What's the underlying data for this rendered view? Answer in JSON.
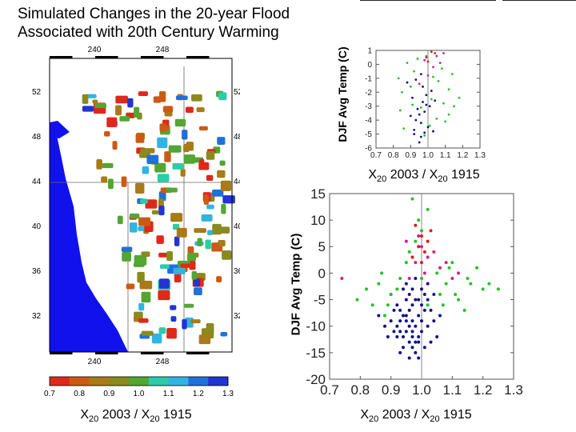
{
  "title": "Simulated Changes in the 20-year Flood\nAssociated with 20th Century Warming",
  "colors": {
    "dark_blue": "#10108a",
    "green": "#22c422",
    "magenta": "#d21e8c",
    "red": "#e01818"
  },
  "map": {
    "lon_ticks": [
      "240",
      "248"
    ],
    "lat_ticks": [
      "52",
      "48",
      "44",
      "40",
      "36",
      "32"
    ],
    "lat_ticks_right": [
      "52",
      "48",
      "44",
      "40",
      "36",
      "32"
    ],
    "colorbar": {
      "ticks": [
        "0.7",
        "0.8",
        "0.9",
        "1.0",
        "1.1",
        "1.2",
        "1.3"
      ],
      "colors": [
        "#e0281a",
        "#cc5a14",
        "#a87a18",
        "#8a8a1e",
        "#52a632",
        "#2ccca8",
        "#30b4e4",
        "#2070dc",
        "#2234d2"
      ],
      "xlabel": "X20 2003 / X20 1915"
    }
  },
  "chart_data": [
    {
      "type": "scatter",
      "title": "",
      "xlabel": "X20 2003 / X20 1915",
      "ylabel": "DJF Avg Temp (C)",
      "xlim": [
        0.7,
        1.3
      ],
      "ylim": [
        -6,
        1
      ],
      "xticks": [
        "0.7",
        "0.8",
        "0.9",
        "1.0",
        "1.1",
        "1.2",
        "1.3"
      ],
      "yticks": [
        "1",
        "0",
        "-1",
        "-2",
        "-3",
        "-4",
        "-5",
        "-6"
      ],
      "vline": 1.0,
      "series": [
        {
          "color": "#10108a",
          "points": [
            [
              0.93,
              -1.1
            ],
            [
              0.96,
              -0.7
            ],
            [
              0.97,
              -2.7
            ],
            [
              0.99,
              -2.9
            ],
            [
              0.95,
              -3.6
            ],
            [
              0.92,
              -4.7
            ],
            [
              0.98,
              -3.4
            ],
            [
              1.02,
              -1.9
            ],
            [
              0.94,
              -3.2
            ],
            [
              0.96,
              -4.2
            ],
            [
              1.0,
              -4.5
            ],
            [
              0.91,
              -2.4
            ],
            [
              0.88,
              -1.3
            ],
            [
              1.03,
              -4.8
            ],
            [
              0.97,
              -1.6
            ],
            [
              0.95,
              -5.6
            ],
            [
              0.93,
              -4.0
            ],
            [
              1.01,
              -3.0
            ],
            [
              0.99,
              -2.2
            ],
            [
              0.9,
              -3.7
            ],
            [
              0.96,
              -5.2
            ],
            [
              1.04,
              -2.6
            ],
            [
              0.92,
              -5.0
            ],
            [
              0.98,
              -4.9
            ]
          ]
        },
        {
          "color": "#22c422",
          "points": [
            [
              0.88,
              0.1
            ],
            [
              0.92,
              -0.5
            ],
            [
              1.08,
              -0.3
            ],
            [
              1.12,
              -1.8
            ],
            [
              1.02,
              -2.5
            ],
            [
              0.85,
              -2.0
            ],
            [
              1.15,
              -3.0
            ],
            [
              0.94,
              0.4
            ],
            [
              1.06,
              -1.2
            ],
            [
              0.84,
              -3.3
            ],
            [
              1.1,
              -4.1
            ],
            [
              0.9,
              -1.6
            ],
            [
              1.03,
              -0.9
            ],
            [
              1.18,
              -2.4
            ],
            [
              0.96,
              -3.1
            ],
            [
              1.05,
              -3.9
            ],
            [
              0.86,
              -4.6
            ],
            [
              1.14,
              -0.7
            ],
            [
              0.99,
              0.6
            ],
            [
              1.09,
              -2.8
            ],
            [
              0.83,
              -1.0
            ],
            [
              1.01,
              -4.4
            ],
            [
              0.98,
              -5.1
            ],
            [
              1.12,
              -3.6
            ],
            [
              0.91,
              -2.9
            ]
          ]
        },
        {
          "color": "#d21e8c",
          "points": [
            [
              1.05,
              0.6
            ],
            [
              1.0,
              -0.8
            ],
            [
              0.98,
              0.3
            ],
            [
              1.07,
              0.1
            ],
            [
              0.95,
              -1.4
            ],
            [
              1.03,
              -0.2
            ],
            [
              1.09,
              0.8
            ]
          ]
        },
        {
          "color": "#e01818",
          "points": [
            [
              1.02,
              0.9
            ],
            [
              0.99,
              0.5
            ],
            [
              1.04,
              0.8
            ],
            [
              1.0,
              0.2
            ]
          ]
        }
      ]
    },
    {
      "type": "scatter",
      "title": "",
      "xlabel": "X20 2003 / X20 1915",
      "ylabel": "DJF Avg Temp (C)",
      "xlim": [
        0.7,
        1.3
      ],
      "ylim": [
        -20,
        15
      ],
      "xticks": [
        "0.7",
        "0.8",
        "0.9",
        "1.0",
        "1.1",
        "1.2",
        "1.3"
      ],
      "yticks": [
        "15",
        "10",
        "5",
        "0",
        "-5",
        "-10",
        "-15",
        "-20"
      ],
      "vline": 1.0,
      "series": [
        {
          "color": "#10108a",
          "points": [
            [
              0.93,
              -7
            ],
            [
              0.95,
              -9
            ],
            [
              0.97,
              -11
            ],
            [
              0.98,
              -5
            ],
            [
              1.0,
              -3
            ],
            [
              0.96,
              -13
            ],
            [
              0.94,
              -14
            ],
            [
              0.99,
              -8
            ],
            [
              1.02,
              -10
            ],
            [
              1.01,
              -4
            ],
            [
              0.92,
              -12
            ],
            [
              0.97,
              -6
            ],
            [
              0.95,
              -2
            ],
            [
              1.03,
              -7
            ],
            [
              0.98,
              -15
            ],
            [
              0.9,
              -9
            ],
            [
              0.96,
              -10
            ],
            [
              0.99,
              -12
            ],
            [
              1.0,
              -6
            ],
            [
              0.94,
              -8
            ],
            [
              0.97,
              -3
            ],
            [
              1.01,
              -14
            ],
            [
              0.93,
              -11
            ],
            [
              0.95,
              -5
            ],
            [
              0.98,
              -1
            ],
            [
              1.04,
              -9
            ],
            [
              0.91,
              -7
            ],
            [
              0.96,
              -4
            ],
            [
              0.99,
              -13
            ],
            [
              1.02,
              -2
            ],
            [
              0.88,
              -10
            ],
            [
              0.94,
              -12
            ],
            [
              0.97,
              -9
            ],
            [
              1.0,
              -11
            ],
            [
              0.92,
              -6
            ],
            [
              1.05,
              -12
            ],
            [
              0.96,
              -16
            ],
            [
              0.98,
              -10
            ],
            [
              0.86,
              -8
            ],
            [
              1.01,
              -7
            ],
            [
              0.93,
              -15
            ],
            [
              0.99,
              -5
            ],
            [
              0.95,
              -11
            ],
            [
              1.03,
              -13
            ],
            [
              0.9,
              -4
            ],
            [
              0.97,
              -14
            ],
            [
              0.94,
              -3
            ],
            [
              1.0,
              -9
            ],
            [
              0.89,
              -12
            ],
            [
              0.96,
              -7
            ],
            [
              1.06,
              -8
            ],
            [
              0.92,
              -10
            ],
            [
              0.98,
              -13
            ],
            [
              1.02,
              -5
            ],
            [
              0.95,
              -8
            ],
            [
              0.99,
              -16
            ],
            [
              0.91,
              -11
            ],
            [
              1.04,
              -4
            ],
            [
              0.97,
              -12
            ],
            [
              0.93,
              -9
            ]
          ]
        },
        {
          "color": "#22c422",
          "points": [
            [
              0.86,
              -2
            ],
            [
              0.9,
              -4
            ],
            [
              0.95,
              2
            ],
            [
              0.98,
              6
            ],
            [
              1.0,
              8
            ],
            [
              1.02,
              12
            ],
            [
              0.99,
              10
            ],
            [
              1.05,
              0
            ],
            [
              1.08,
              -2
            ],
            [
              1.12,
              -5
            ],
            [
              1.15,
              -1
            ],
            [
              1.2,
              -3
            ],
            [
              0.84,
              -6
            ],
            [
              0.93,
              -1
            ],
            [
              1.1,
              2
            ],
            [
              1.18,
              1
            ],
            [
              0.88,
              -8
            ],
            [
              1.06,
              -4
            ],
            [
              1.14,
              -7
            ],
            [
              0.82,
              -3
            ],
            [
              1.02,
              -6
            ],
            [
              1.16,
              -2
            ],
            [
              0.96,
              4
            ],
            [
              1.22,
              -2
            ],
            [
              1.09,
              1
            ],
            [
              0.87,
              0
            ],
            [
              1.25,
              -3
            ],
            [
              0.79,
              -5
            ],
            [
              1.11,
              -4
            ],
            [
              0.97,
              14
            ],
            [
              1.0,
              -1
            ],
            [
              0.92,
              -3
            ],
            [
              1.07,
              -6
            ],
            [
              0.89,
              -6
            ]
          ]
        },
        {
          "color": "#d21e8c",
          "points": [
            [
              1.0,
              5
            ],
            [
              1.04,
              4
            ],
            [
              0.98,
              2
            ],
            [
              1.06,
              1
            ],
            [
              0.96,
              -1
            ],
            [
              1.1,
              -1
            ],
            [
              1.02,
              3
            ],
            [
              0.95,
              6
            ],
            [
              1.08,
              2
            ],
            [
              1.01,
              0
            ],
            [
              0.74,
              -1
            ],
            [
              0.99,
              7
            ],
            [
              1.12,
              0
            ]
          ]
        },
        {
          "color": "#e01818",
          "points": [
            [
              1.0,
              7
            ],
            [
              0.99,
              5
            ],
            [
              1.02,
              6
            ],
            [
              0.98,
              9
            ],
            [
              1.01,
              4
            ],
            [
              0.97,
              3
            ],
            [
              1.03,
              8
            ],
            [
              1.0,
              2
            ]
          ]
        }
      ]
    }
  ]
}
